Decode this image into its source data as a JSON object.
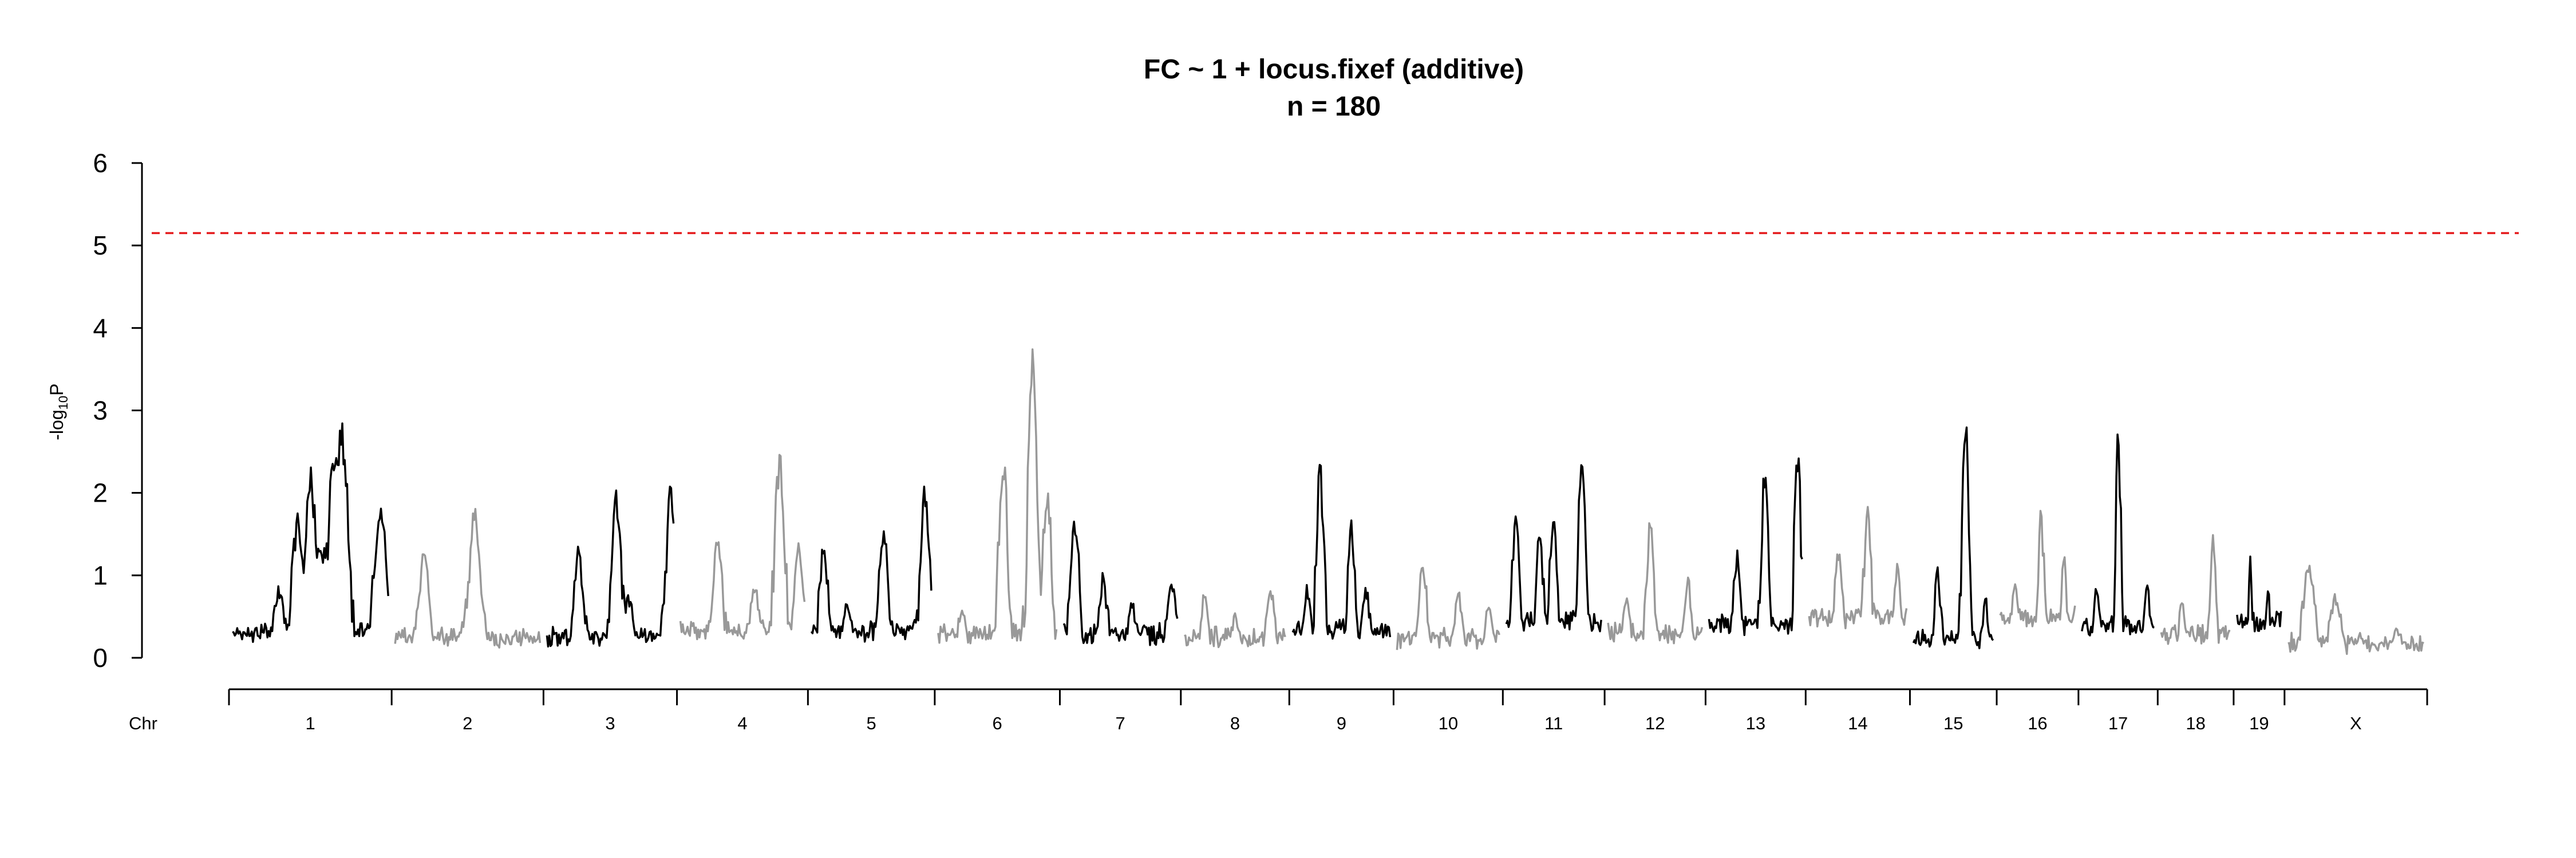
{
  "chart_data": {
    "type": "line",
    "title": "FC ~ 1 + locus.fixef (additive)",
    "subtitle": "n = 180",
    "ylabel": "-log10P",
    "ylabel_parts": {
      "prefix": "-log",
      "sub": "10",
      "suffix": "P"
    },
    "xlabel": "Chr",
    "ylim": [
      0,
      6
    ],
    "yticks": [
      "0",
      "1",
      "2",
      "3",
      "4",
      "5",
      "6"
    ],
    "threshold": {
      "value": 5.15,
      "color": "#e41a1c",
      "style": "dashed"
    },
    "colors": {
      "odd": "#000000",
      "even": "#999999"
    },
    "chromosomes": [
      {
        "label": "1",
        "length": 195,
        "peaks": [
          [
            0.1,
            0.35
          ],
          [
            0.3,
            0.85
          ],
          [
            0.42,
            1.8
          ],
          [
            0.5,
            2.3
          ],
          [
            0.55,
            1.5
          ],
          [
            0.6,
            1.5
          ],
          [
            0.65,
            2.55
          ],
          [
            0.7,
            3.0
          ],
          [
            0.8,
            0.4
          ],
          [
            0.95,
            1.95
          ]
        ],
        "base": 0.2
      },
      {
        "label": "2",
        "length": 182,
        "peaks": [
          [
            0.2,
            1.35
          ],
          [
            0.5,
            0.7
          ],
          [
            0.55,
            1.85
          ],
          [
            0.9,
            0.3
          ]
        ],
        "base": 0.15
      },
      {
        "label": "3",
        "length": 160,
        "peaks": [
          [
            0.25,
            1.35
          ],
          [
            0.55,
            2.1
          ],
          [
            0.65,
            0.8
          ],
          [
            0.98,
            2.2
          ]
        ],
        "base": 0.15
      },
      {
        "label": "4",
        "length": 157,
        "peaks": [
          [
            0.3,
            1.5
          ],
          [
            0.6,
            0.9
          ],
          [
            0.8,
            2.6
          ],
          [
            0.95,
            1.4
          ]
        ],
        "base": 0.25
      },
      {
        "label": "5",
        "length": 152,
        "peaks": [
          [
            0.1,
            1.35
          ],
          [
            0.3,
            0.7
          ],
          [
            0.6,
            1.7
          ],
          [
            0.95,
            2.15
          ]
        ],
        "base": 0.25
      },
      {
        "label": "6",
        "length": 150,
        "peaks": [
          [
            0.2,
            0.6
          ],
          [
            0.55,
            2.5
          ],
          [
            0.8,
            3.75
          ],
          [
            0.92,
            2.1
          ]
        ],
        "base": 0.2
      },
      {
        "label": "7",
        "length": 145,
        "peaks": [
          [
            0.1,
            1.75
          ],
          [
            0.35,
            1.0
          ],
          [
            0.6,
            0.7
          ],
          [
            0.95,
            1.05
          ]
        ],
        "base": 0.2
      },
      {
        "label": "8",
        "length": 130,
        "peaks": [
          [
            0.2,
            0.8
          ],
          [
            0.5,
            0.55
          ],
          [
            0.85,
            0.9
          ]
        ],
        "base": 0.15
      },
      {
        "label": "9",
        "length": 125,
        "peaks": [
          [
            0.15,
            0.9
          ],
          [
            0.28,
            2.5
          ],
          [
            0.6,
            1.7
          ],
          [
            0.75,
            0.9
          ]
        ],
        "base": 0.25
      },
      {
        "label": "10",
        "length": 131,
        "peaks": [
          [
            0.25,
            1.2
          ],
          [
            0.6,
            0.85
          ],
          [
            0.9,
            0.7
          ]
        ],
        "base": 0.15
      },
      {
        "label": "11",
        "length": 122,
        "peaks": [
          [
            0.1,
            1.8
          ],
          [
            0.35,
            1.65
          ],
          [
            0.5,
            1.8
          ],
          [
            0.8,
            2.75
          ]
        ],
        "base": 0.35
      },
      {
        "label": "12",
        "length": 121,
        "peaks": [
          [
            0.2,
            0.8
          ],
          [
            0.45,
            1.7
          ],
          [
            0.85,
            0.95
          ]
        ],
        "base": 0.2
      },
      {
        "label": "13",
        "length": 120,
        "peaks": [
          [
            0.3,
            1.35
          ],
          [
            0.6,
            2.5
          ],
          [
            0.95,
            2.6
          ]
        ],
        "base": 0.3
      },
      {
        "label": "14",
        "length": 125,
        "peaks": [
          [
            0.3,
            1.45
          ],
          [
            0.6,
            1.85
          ],
          [
            0.9,
            1.2
          ]
        ],
        "base": 0.4
      },
      {
        "label": "15",
        "length": 104,
        "peaks": [
          [
            0.3,
            1.1
          ],
          [
            0.65,
            3.2
          ],
          [
            0.9,
            0.7
          ]
        ],
        "base": 0.15
      },
      {
        "label": "16",
        "length": 98,
        "peaks": [
          [
            0.2,
            1.05
          ],
          [
            0.55,
            1.85
          ],
          [
            0.85,
            1.3
          ]
        ],
        "base": 0.4
      },
      {
        "label": "17",
        "length": 95,
        "peaks": [
          [
            0.2,
            0.95
          ],
          [
            0.5,
            2.8
          ],
          [
            0.9,
            1.0
          ]
        ],
        "base": 0.3
      },
      {
        "label": "18",
        "length": 91,
        "peaks": [
          [
            0.3,
            0.7
          ],
          [
            0.75,
            1.65
          ]
        ],
        "base": 0.2
      },
      {
        "label": "19",
        "length": 61,
        "peaks": [
          [
            0.3,
            1.25
          ],
          [
            0.7,
            0.9
          ]
        ],
        "base": 0.35
      },
      {
        "label": "X",
        "length": 171,
        "peaks": [
          [
            0.15,
            1.2
          ],
          [
            0.35,
            0.8
          ],
          [
            0.8,
            0.35
          ]
        ],
        "base": 0.1
      }
    ]
  }
}
